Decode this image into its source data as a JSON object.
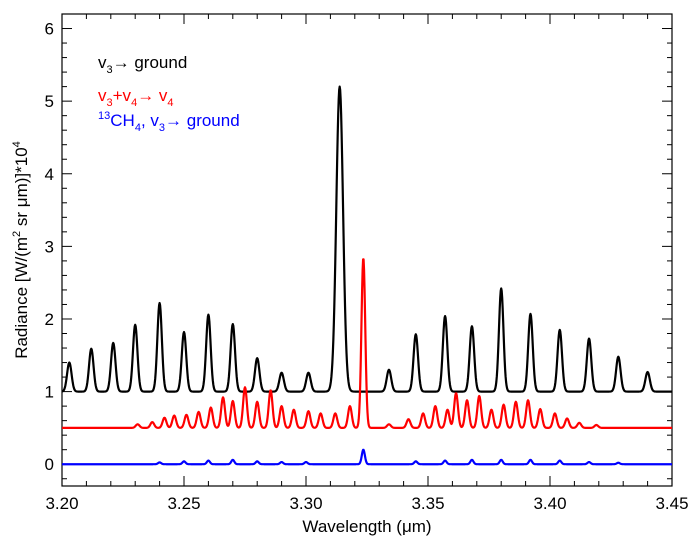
{
  "chart_data": {
    "type": "line",
    "xlabel": "Wavelength (μm)",
    "ylabel_parts": {
      "pre": "Radiance [W/(m",
      "sup1": "2",
      "mid": " sr μm)]*10",
      "sup2": "4"
    },
    "xlim": [
      3.2,
      3.45
    ],
    "ylim": [
      -0.3,
      6.2
    ],
    "x_ticks": [
      3.2,
      3.25,
      3.3,
      3.35,
      3.4,
      3.45
    ],
    "x_tick_labels": [
      "3.20",
      "3.25",
      "3.30",
      "3.35",
      "3.40",
      "3.45"
    ],
    "y_ticks": [
      0,
      1,
      2,
      3,
      4,
      5,
      6
    ],
    "y_tick_labels": [
      "0",
      "1",
      "2",
      "3",
      "4",
      "5",
      "6"
    ],
    "grid": false,
    "legend_position": "top-left",
    "legend": [
      {
        "parts": [
          "v",
          "3",
          "→ ground"
        ],
        "sub": [
          false,
          true,
          false
        ],
        "color": "#000000"
      },
      {
        "parts": [
          "v",
          "3",
          "+v",
          "4",
          "→ v",
          "4"
        ],
        "sub": [
          false,
          true,
          false,
          true,
          false,
          true
        ],
        "color": "#ff0000"
      },
      {
        "parts": [
          "13",
          "CH",
          "4",
          ", v",
          "3",
          "→ ground"
        ],
        "sub": [
          false,
          false,
          true,
          false,
          true,
          false
        ],
        "sup": [
          true,
          false,
          false,
          false,
          false,
          false
        ],
        "color": "#0000ff"
      }
    ],
    "series": [
      {
        "color": "#000000",
        "baseline": 1.0,
        "width": 0.0013,
        "peaks": [
          [
            3.203,
            0.4
          ],
          [
            3.212,
            0.59
          ],
          [
            3.221,
            0.67
          ],
          [
            3.23,
            0.92
          ],
          [
            3.24,
            1.22
          ],
          [
            3.25,
            0.82
          ],
          [
            3.26,
            1.06
          ],
          [
            3.27,
            0.93
          ],
          [
            3.28,
            0.46
          ],
          [
            3.29,
            0.26
          ],
          [
            3.301,
            0.26
          ],
          [
            3.3138,
            4.2
          ],
          [
            3.334,
            0.3
          ],
          [
            3.345,
            0.79
          ],
          [
            3.357,
            1.04
          ],
          [
            3.368,
            0.9
          ],
          [
            3.38,
            1.42
          ],
          [
            3.392,
            1.07
          ],
          [
            3.404,
            0.85
          ],
          [
            3.416,
            0.73
          ],
          [
            3.428,
            0.48
          ],
          [
            3.44,
            0.27
          ]
        ]
      },
      {
        "color": "#ff0000",
        "baseline": 0.5,
        "width": 0.0011,
        "peaks": [
          [
            3.231,
            0.05
          ],
          [
            3.237,
            0.08
          ],
          [
            3.242,
            0.14
          ],
          [
            3.246,
            0.17
          ],
          [
            3.251,
            0.18
          ],
          [
            3.256,
            0.22
          ],
          [
            3.261,
            0.28
          ],
          [
            3.266,
            0.42
          ],
          [
            3.27,
            0.37
          ],
          [
            3.275,
            0.56
          ],
          [
            3.28,
            0.36
          ],
          [
            3.2855,
            0.52
          ],
          [
            3.29,
            0.3
          ],
          [
            3.295,
            0.25
          ],
          [
            3.301,
            0.23
          ],
          [
            3.306,
            0.2
          ],
          [
            3.312,
            0.2
          ],
          [
            3.318,
            0.3
          ],
          [
            3.3235,
            2.34
          ],
          [
            3.334,
            0.05
          ],
          [
            3.342,
            0.12
          ],
          [
            3.348,
            0.2
          ],
          [
            3.353,
            0.3
          ],
          [
            3.358,
            0.25
          ],
          [
            3.3615,
            0.48
          ],
          [
            3.366,
            0.38
          ],
          [
            3.371,
            0.44
          ],
          [
            3.376,
            0.25
          ],
          [
            3.381,
            0.32
          ],
          [
            3.386,
            0.36
          ],
          [
            3.391,
            0.38
          ],
          [
            3.396,
            0.26
          ],
          [
            3.402,
            0.2
          ],
          [
            3.407,
            0.13
          ],
          [
            3.412,
            0.07
          ],
          [
            3.419,
            0.04
          ]
        ]
      },
      {
        "color": "#0000ff",
        "baseline": 0.0,
        "width": 0.0009,
        "peaks": [
          [
            3.24,
            0.025
          ],
          [
            3.25,
            0.04
          ],
          [
            3.26,
            0.05
          ],
          [
            3.27,
            0.06
          ],
          [
            3.28,
            0.04
          ],
          [
            3.29,
            0.03
          ],
          [
            3.3,
            0.03
          ],
          [
            3.3235,
            0.2
          ],
          [
            3.345,
            0.04
          ],
          [
            3.357,
            0.05
          ],
          [
            3.368,
            0.06
          ],
          [
            3.38,
            0.06
          ],
          [
            3.392,
            0.06
          ],
          [
            3.404,
            0.05
          ],
          [
            3.416,
            0.03
          ],
          [
            3.428,
            0.02
          ]
        ]
      }
    ]
  }
}
